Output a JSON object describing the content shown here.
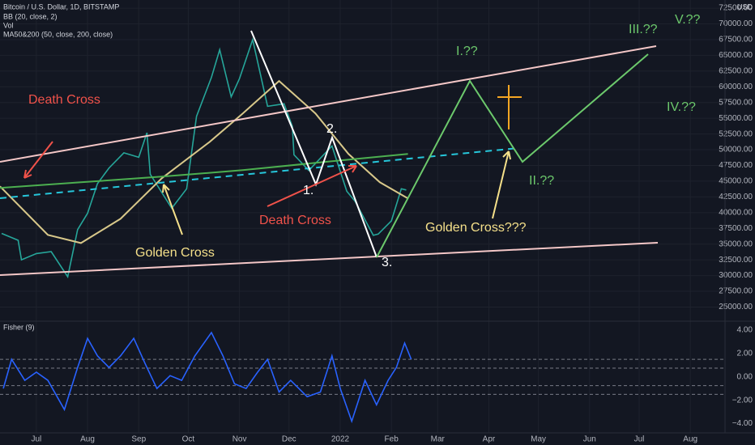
{
  "chart_data": [
    {
      "type": "line",
      "title": "Bitcoin / U.S. Dollar, 1D, BITSTAMP",
      "indicators": [
        "BB (20, close, 2)",
        "Vol",
        "MA50&200 (50, close, 200, close)"
      ],
      "y_unit": "USD",
      "xlim": [
        -22,
        417
      ],
      "xticks": [
        {
          "value": 0,
          "label": "Jul"
        },
        {
          "value": 31,
          "label": "Aug"
        },
        {
          "value": 62,
          "label": "Sep"
        },
        {
          "value": 92,
          "label": "Oct"
        },
        {
          "value": 123,
          "label": "Nov"
        },
        {
          "value": 153,
          "label": "Dec"
        },
        {
          "value": 184,
          "label": "2022"
        },
        {
          "value": 215,
          "label": "Feb"
        },
        {
          "value": 243,
          "label": "Mar"
        },
        {
          "value": 274,
          "label": "Apr"
        },
        {
          "value": 304,
          "label": "May"
        },
        {
          "value": 335,
          "label": "Jun"
        },
        {
          "value": 365,
          "label": "Jul"
        },
        {
          "value": 396,
          "label": "Aug"
        }
      ],
      "ylim": [
        23000,
        73800
      ],
      "yticks": [
        {
          "value": 25000,
          "label": "25000.00"
        },
        {
          "value": 27500,
          "label": "27500.00"
        },
        {
          "value": 30000,
          "label": "30000.00"
        },
        {
          "value": 32500,
          "label": "32500.00"
        },
        {
          "value": 35000,
          "label": "35000.00"
        },
        {
          "value": 37500,
          "label": "37500.00"
        },
        {
          "value": 40000,
          "label": "40000.00"
        },
        {
          "value": 42500,
          "label": "42500.00"
        },
        {
          "value": 45000,
          "label": "45000.00"
        },
        {
          "value": 47500,
          "label": "47500.00"
        },
        {
          "value": 50000,
          "label": "50000.00"
        },
        {
          "value": 52500,
          "label": "52500.00"
        },
        {
          "value": 55000,
          "label": "55000.00"
        },
        {
          "value": 57500,
          "label": "57500.00"
        },
        {
          "value": 60000,
          "label": "60000.00"
        },
        {
          "value": 62500,
          "label": "62500.00"
        },
        {
          "value": 65000,
          "label": "65000.00"
        },
        {
          "value": 67500,
          "label": "67500.00"
        },
        {
          "value": 70000,
          "label": "70000.00"
        },
        {
          "value": 72500,
          "label": "72500.00"
        }
      ],
      "grid": true,
      "series": [
        {
          "color": "#26a69a",
          "x": [
            -21,
            -11,
            -9,
            0,
            9,
            19,
            25,
            31,
            37,
            44,
            53,
            62,
            67,
            69,
            82,
            91,
            97,
            106,
            111,
            118,
            123,
            131,
            140,
            150,
            155,
            156,
            165,
            179,
            188,
            193,
            204,
            207,
            215,
            221,
            224
          ],
          "values": [
            36700,
            35600,
            32500,
            33500,
            33800,
            29800,
            37300,
            39900,
            44600,
            47100,
            49500,
            48800,
            52700,
            46100,
            40700,
            43800,
            55300,
            61500,
            65900,
            58400,
            61300,
            67500,
            56900,
            57300,
            53700,
            49200,
            46700,
            50600,
            43400,
            41800,
            36400,
            36600,
            38700,
            43800,
            43600
          ]
        },
        {
          "color": "#d8c88a",
          "x": [
            -22,
            7,
            27,
            51,
            76,
            105,
            125,
            147,
            169,
            189,
            208,
            225
          ],
          "values": [
            44180,
            36460,
            35170,
            39030,
            45470,
            51260,
            55770,
            60920,
            55770,
            49330,
            44830,
            42250
          ]
        },
        {
          "color": "#4caf50",
          "x": [
            -22,
            27,
            76,
            125,
            174,
            225
          ],
          "values": [
            43930,
            44830,
            45730,
            46760,
            48040,
            49330
          ]
        }
      ],
      "annotations": [
        "Death Cross",
        "Golden Cross",
        "Death Cross",
        "Golden Cross???",
        "1.",
        "2.",
        "3.",
        "I.??",
        "II.??",
        "III.??",
        "IV.??",
        "V.??"
      ]
    },
    {
      "type": "line",
      "title": "Fisher (9)",
      "xlim": [
        -22,
        417
      ],
      "ylim": [
        -4.8,
        4.7
      ],
      "yticks": [
        {
          "value": 4,
          "label": "4.00"
        },
        {
          "value": 2,
          "label": "2.00"
        },
        {
          "value": 0,
          "label": "0.00"
        },
        {
          "value": -2,
          "label": "−2.00"
        },
        {
          "value": -4,
          "label": "−4.00"
        }
      ],
      "levels": [
        1.5,
        0.75,
        -0.75,
        -1.5
      ],
      "series": [
        {
          "color": "#2962ff",
          "x": [
            -20,
            -15,
            -7,
            0,
            7,
            17,
            25,
            31,
            37,
            44,
            51,
            59,
            66,
            73,
            81,
            88,
            96,
            106,
            113,
            120,
            127,
            134,
            140,
            147,
            154,
            164,
            172,
            179,
            184,
            191,
            199,
            206,
            213,
            218,
            223,
            227
          ],
          "values": [
            -1.0,
            1.5,
            -0.3,
            0.4,
            -0.3,
            -2.8,
            0.8,
            3.3,
            1.8,
            0.8,
            1.8,
            3.3,
            1.1,
            -1.0,
            0.1,
            -0.3,
            1.8,
            3.8,
            1.8,
            -0.6,
            -1.0,
            0.4,
            1.5,
            -1.3,
            -0.3,
            -1.7,
            -1.3,
            1.8,
            -1.0,
            -3.8,
            -0.3,
            -2.4,
            -0.3,
            0.8,
            2.9,
            1.5
          ]
        }
      ]
    }
  ]
}
